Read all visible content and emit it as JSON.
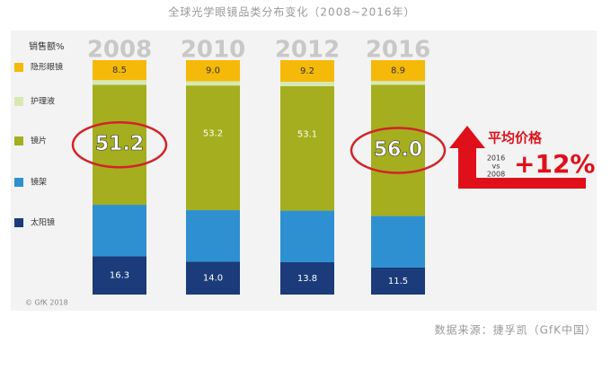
{
  "chart_data": {
    "type": "stacked_bar",
    "title": "全球光学眼镜品类分布变化（2008~2016年）",
    "y_label": "销售额%",
    "categories": [
      "2008",
      "2010",
      "2012",
      "2016"
    ],
    "ylim": [
      0,
      100
    ],
    "series": [
      {
        "name": "隐形眼镜",
        "color": "#f5b90a",
        "values": [
          8.5,
          9,
          9.2,
          8.9
        ],
        "value_labels": [
          "8.5",
          "9.0",
          "9.2",
          "8.9"
        ]
      },
      {
        "name": "护理液",
        "color": "#d6e9b4",
        "values": [
          2,
          1.8,
          1.9,
          1.6
        ]
      },
      {
        "name": "镜片",
        "color": "#a5ae1e",
        "values": [
          51.2,
          53.2,
          53.1,
          56
        ],
        "value_labels": [
          "51.2",
          "53.2",
          "53.1",
          "56.0"
        ]
      },
      {
        "name": "镜架",
        "color": "#2e90d1",
        "values": [
          22,
          22,
          22,
          22
        ]
      },
      {
        "name": "太阳镜",
        "color": "#1b3b7a",
        "values": [
          16.3,
          14,
          13.8,
          11.5
        ],
        "value_labels": [
          "16.3",
          "14.0",
          "13.8",
          "11.5"
        ]
      }
    ],
    "annotations": [
      "平均价格",
      "2016",
      "vs",
      "2008",
      "+12%"
    ],
    "copyright": "© GfK 2018",
    "source": "数据来源：捷孚凯（GfK中国）"
  }
}
